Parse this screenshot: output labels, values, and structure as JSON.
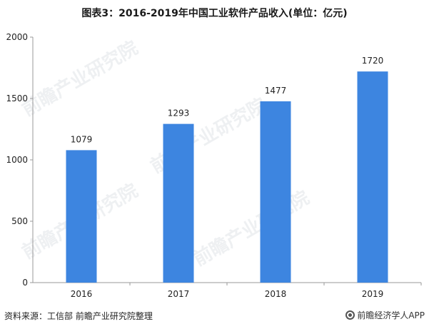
{
  "chart_data": {
    "type": "bar",
    "title": "图表3：2016-2019年中国工业软件产品收入(单位：亿元)",
    "categories": [
      "2016",
      "2017",
      "2018",
      "2019"
    ],
    "values": [
      1079,
      1293,
      1477,
      1720
    ],
    "data_labels": [
      "1079",
      "1293",
      "1477",
      "1720"
    ],
    "ylim": [
      0,
      2000
    ],
    "yticks": [
      0,
      500,
      1000,
      1500,
      2000
    ],
    "grid": false,
    "bar_color": "#3D85E0"
  },
  "footer": {
    "source": "资料来源：工信部 前瞻产业研究院整理",
    "brand": "前瞻经济学人APP"
  },
  "watermark": "前瞻产业研究院"
}
